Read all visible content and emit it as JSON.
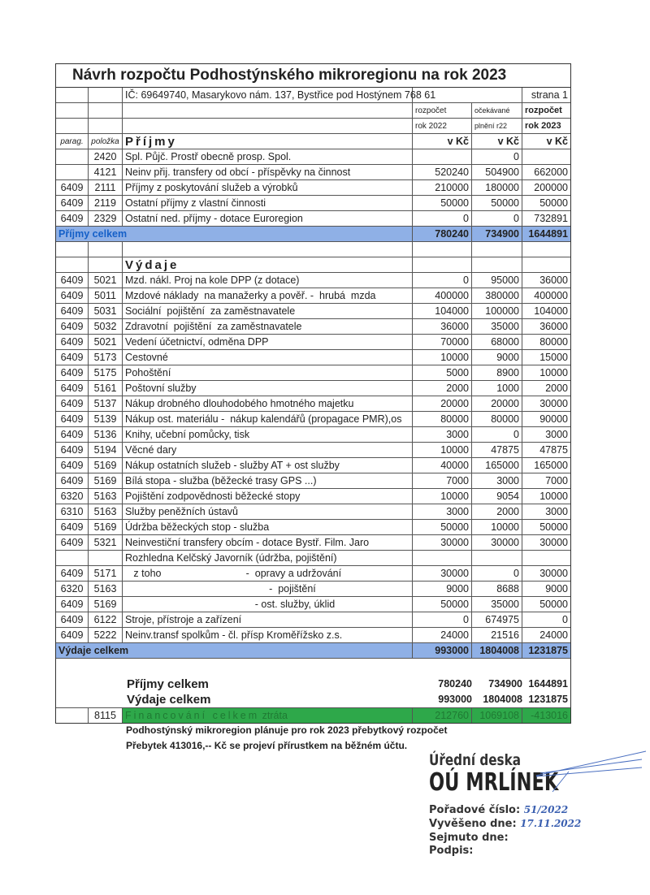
{
  "title": "Návrh rozpočtu Podhostýnského mikroregionu na rok 2023",
  "header": {
    "address": "IČ: 69649740, Masarykovo nám. 137, Bystřice pod Hostýnem 768 61",
    "page": "strana 1",
    "col1_a": "rozpočet",
    "col1_b": "rok 2022",
    "col2_a": "očekávané",
    "col2_b": "plnění r22",
    "col3_a": "rozpočet",
    "col3_b": "rok 2023",
    "parag": "parag.",
    "polozka": "položka",
    "unit": "v Kč"
  },
  "income": {
    "label": "Příjmy",
    "rows": [
      [
        "",
        "2420",
        "Spl. Půjč. Prostř obecně prosp. Spol.",
        "",
        "0",
        ""
      ],
      [
        "",
        "4121",
        "Neinv přij. transfery od obcí - příspěvky na činnost",
        "520240",
        "504900",
        "662000"
      ],
      [
        "6409",
        "2111",
        "Příjmy z poskytování služeb a výrobků",
        "210000",
        "180000",
        "200000"
      ],
      [
        "6409",
        "2119",
        "Ostatní příjmy z vlastní činnosti",
        "50000",
        "50000",
        "50000"
      ],
      [
        "6409",
        "2329",
        "Ostatní ned. příjmy - dotace Euroregion",
        "0",
        "0",
        "732891"
      ]
    ],
    "total": [
      "Příjmy celkem",
      "780240",
      "734900",
      "1644891"
    ]
  },
  "expenses": {
    "label": "Výdaje",
    "rows": [
      [
        "6409",
        "5021",
        "Mzd. nákl. Proj na kole DPP (z dotace)",
        "0",
        "95000",
        "36000"
      ],
      [
        "6409",
        "5011",
        "Mzdové náklady  na manažerky a pověř. -  hrubá  mzda",
        "400000",
        "380000",
        "400000"
      ],
      [
        "6409",
        "5031",
        "Sociální  pojištění  za zaměstnavatele",
        "104000",
        "100000",
        "104000"
      ],
      [
        "6409",
        "5032",
        "Zdravotní  pojištění  za zaměstnavatele",
        "36000",
        "35000",
        "36000"
      ],
      [
        "6409",
        "5021",
        "Vedení účetnictví, odměna DPP",
        "70000",
        "68000",
        "80000"
      ],
      [
        "6409",
        "5173",
        "Cestovné",
        "10000",
        "9000",
        "15000"
      ],
      [
        "6409",
        "5175",
        "Pohoštění",
        "5000",
        "8900",
        "10000"
      ],
      [
        "6409",
        "5161",
        "Poštovní služby",
        "2000",
        "1000",
        "2000"
      ],
      [
        "6409",
        "5137",
        "Nákup drobného dlouhodobého hmotného majetku",
        "20000",
        "20000",
        "30000"
      ],
      [
        "6409",
        "5139",
        "Nákup ost. materiálu -  nákup kalendářů (propagace PMR),os",
        "80000",
        "80000",
        "90000"
      ],
      [
        "6409",
        "5136",
        "Knihy, učební pomůcky, tisk",
        "3000",
        "0",
        "3000"
      ],
      [
        "6409",
        "5194",
        "Věcné dary",
        "10000",
        "47875",
        "47875"
      ],
      [
        "6409",
        "5169",
        "Nákup ostatních služeb - služby AT + ost služby",
        "40000",
        "165000",
        "165000"
      ],
      [
        "6409",
        "5169",
        "Bílá stopa - služba (běžecké trasy GPS ...)",
        "7000",
        "3000",
        "7000"
      ],
      [
        "6320",
        "5163",
        "Pojištění zodpovědnosti běžecké stopy",
        "10000",
        "9054",
        "10000"
      ],
      [
        "6310",
        "5163",
        "Služby peněžních ústavů",
        "3000",
        "2000",
        "3000"
      ],
      [
        "6409",
        "5169",
        "Údržba běžeckých stop - služba",
        "50000",
        "10000",
        "50000"
      ],
      [
        "6409",
        "5321",
        "Neinvestiční transfery obcím - dotace Bystř. Film. Jaro",
        "30000",
        "30000",
        "30000"
      ],
      [
        "",
        "",
        "Rozhledna Kelčský Javorník (údržba, pojištění)",
        "",
        "",
        ""
      ],
      [
        "6409",
        "5171",
        "   z toho                              -  opravy a udržování",
        "30000",
        "0",
        "30000"
      ],
      [
        "6320",
        "5163",
        "                                                   -  pojištění",
        "9000",
        "8688",
        "9000"
      ],
      [
        "6409",
        "5169",
        "                                              - ost. služby, úklid",
        "50000",
        "35000",
        "50000"
      ],
      [
        "6409",
        "6122",
        "Stroje, přístroje a zařízení",
        "0",
        "674975",
        "0"
      ],
      [
        "6409",
        "5222",
        "Neinv.transf spolkům - čl. přísp Kroměřížsko z.s.",
        "24000",
        "21516",
        "24000"
      ]
    ],
    "total": [
      "Výdaje celkem",
      "993000",
      "1804008",
      "1231875"
    ]
  },
  "summary": {
    "income": [
      "Příjmy celkem",
      "780240",
      "734900",
      "1644891"
    ],
    "expenses": [
      "Výdaje celkem",
      "993000",
      "1804008",
      "1231875"
    ],
    "financing": [
      "8115",
      "Financování celkem",
      "ztráta",
      "212760",
      "1069108",
      "-413016"
    ]
  },
  "notes": [
    "Podhostýnský mikroregion plánuje pro rok 2023 přebytkový rozpočet",
    "Přebytek 413016,--  Kč se projeví přírustkem na  běžném účtu."
  ],
  "stamp": {
    "line1": "Úřední deska",
    "line2": "OÚ MRLÍNEK",
    "order_label": "Pořadové číslo:",
    "order_value": "51/2022",
    "posted_label": "Vyvěšeno  dne:",
    "posted_value": "17.11.2022",
    "removed_label": "Sejmuto  dne:",
    "sign_label": "Podpis:"
  },
  "colors": {
    "total_band": "#8fb0e6",
    "financing_band": "#2ea84a",
    "total_label": "#1560c8"
  }
}
